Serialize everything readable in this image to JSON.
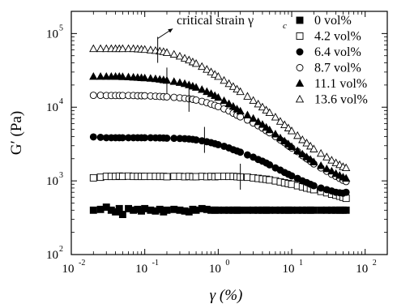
{
  "chart_data": {
    "type": "scatter",
    "title": "",
    "xlabel": "γ (%)",
    "ylabel": "G′ (Pa)",
    "x_scale": "log",
    "y_scale": "log",
    "xlim": [
      0.01,
      200
    ],
    "ylim": [
      100,
      200000
    ],
    "x_ticks": [
      {
        "value": 0.01,
        "base": "10",
        "exp": "-2"
      },
      {
        "value": 0.1,
        "base": "10",
        "exp": "-1"
      },
      {
        "value": 1,
        "base": "10",
        "exp": "0"
      },
      {
        "value": 10,
        "base": "10",
        "exp": "1"
      },
      {
        "value": 100,
        "base": "10",
        "exp": "2"
      }
    ],
    "y_ticks": [
      {
        "value": 100,
        "base": "10",
        "exp": "2"
      },
      {
        "value": 1000,
        "base": "10",
        "exp": "3"
      },
      {
        "value": 10000,
        "base": "10",
        "exp": "4"
      },
      {
        "value": 100000,
        "base": "10",
        "exp": "5"
      }
    ],
    "grid": false,
    "legend_position": "top-right",
    "annotation": {
      "text": "critical strain γ",
      "subscript": "c",
      "x": 0.15,
      "y": 60000,
      "arrow_to": {
        "x": 0.24,
        "y": 100000
      }
    },
    "series": [
      {
        "name": "0 vol%",
        "marker": "square",
        "filled": true,
        "x": [
          0.02,
          0.025,
          0.03,
          0.035,
          0.04,
          0.045,
          0.05,
          0.06,
          0.07,
          0.08,
          0.09,
          0.1,
          0.12,
          0.14,
          0.16,
          0.18,
          0.2,
          0.25,
          0.3,
          0.35,
          0.4,
          0.45,
          0.5,
          0.6,
          0.7,
          0.8,
          0.9,
          1,
          1.2,
          1.4,
          1.6,
          1.8,
          2,
          2.5,
          3,
          3.5,
          4,
          4.5,
          5,
          6,
          7,
          8,
          9,
          10,
          12,
          14,
          16,
          18,
          20,
          25,
          30,
          35,
          40,
          45,
          50,
          55
        ],
        "y": [
          400,
          410,
          440,
          400,
          380,
          420,
          350,
          420,
          400,
          410,
          390,
          420,
          400,
          390,
          410,
          380,
          400,
          410,
          400,
          390,
          380,
          410,
          400,
          420,
          410,
          400,
          400,
          400,
          400,
          400,
          400,
          400,
          400,
          400,
          400,
          400,
          400,
          400,
          400,
          400,
          400,
          400,
          400,
          400,
          400,
          400,
          400,
          400,
          400,
          400,
          400,
          400,
          400,
          400,
          400,
          400
        ]
      },
      {
        "name": "4.2 vol%",
        "marker": "square",
        "filled": false,
        "x": [
          0.02,
          0.025,
          0.03,
          0.035,
          0.04,
          0.045,
          0.05,
          0.06,
          0.07,
          0.08,
          0.09,
          0.1,
          0.12,
          0.14,
          0.16,
          0.18,
          0.2,
          0.25,
          0.3,
          0.35,
          0.4,
          0.45,
          0.5,
          0.6,
          0.7,
          0.8,
          0.9,
          1,
          1.2,
          1.4,
          1.6,
          1.8,
          2,
          2.5,
          3,
          3.5,
          4,
          4.5,
          5,
          6,
          7,
          8,
          9,
          10,
          12,
          14,
          16,
          18,
          20,
          25,
          30,
          35,
          40,
          45,
          50,
          55
        ],
        "y": [
          1100,
          1120,
          1150,
          1150,
          1150,
          1160,
          1150,
          1160,
          1150,
          1150,
          1150,
          1150,
          1150,
          1150,
          1150,
          1150,
          1140,
          1150,
          1150,
          1140,
          1150,
          1140,
          1140,
          1150,
          1140,
          1150,
          1140,
          1150,
          1150,
          1150,
          1150,
          1140,
          1130,
          1120,
          1100,
          1080,
          1060,
          1050,
          1030,
          1000,
          970,
          940,
          920,
          900,
          860,
          830,
          800,
          780,
          760,
          720,
          690,
          660,
          640,
          620,
          600,
          580
        ]
      },
      {
        "name": "6.4 vol%",
        "marker": "circle",
        "filled": true,
        "x": [
          0.02,
          0.025,
          0.03,
          0.035,
          0.04,
          0.045,
          0.05,
          0.06,
          0.07,
          0.08,
          0.09,
          0.1,
          0.12,
          0.14,
          0.16,
          0.18,
          0.2,
          0.25,
          0.3,
          0.35,
          0.4,
          0.45,
          0.5,
          0.6,
          0.7,
          0.8,
          0.9,
          1,
          1.2,
          1.4,
          1.6,
          1.8,
          2,
          2.5,
          3,
          3.5,
          4,
          4.5,
          5,
          6,
          7,
          8,
          9,
          10,
          12,
          14,
          16,
          18,
          20,
          25,
          30,
          35,
          40,
          45,
          50,
          55
        ],
        "y": [
          3950,
          3900,
          3850,
          3850,
          3850,
          3850,
          3850,
          3850,
          3850,
          3850,
          3850,
          3850,
          3850,
          3840,
          3830,
          3820,
          3800,
          3780,
          3760,
          3740,
          3700,
          3660,
          3600,
          3500,
          3400,
          3300,
          3200,
          3100,
          2950,
          2800,
          2650,
          2550,
          2450,
          2250,
          2100,
          1950,
          1850,
          1750,
          1650,
          1500,
          1400,
          1300,
          1230,
          1170,
          1080,
          1000,
          950,
          900,
          860,
          800,
          760,
          730,
          700,
          690,
          680,
          700
        ]
      },
      {
        "name": "8.7 vol%",
        "marker": "circle",
        "filled": false,
        "x": [
          0.02,
          0.025,
          0.03,
          0.035,
          0.04,
          0.045,
          0.05,
          0.06,
          0.07,
          0.08,
          0.09,
          0.1,
          0.12,
          0.14,
          0.16,
          0.18,
          0.2,
          0.25,
          0.3,
          0.35,
          0.4,
          0.45,
          0.5,
          0.6,
          0.7,
          0.8,
          0.9,
          1,
          1.2,
          1.4,
          1.6,
          1.8,
          2,
          2.5,
          3,
          3.5,
          4,
          4.5,
          5,
          6,
          7,
          8,
          9,
          10,
          12,
          14,
          16,
          18,
          20,
          25,
          30,
          35,
          40,
          45,
          50,
          55
        ],
        "y": [
          14500,
          14500,
          14400,
          14400,
          14400,
          14400,
          14400,
          14400,
          14400,
          14300,
          14300,
          14300,
          14200,
          14100,
          14000,
          13900,
          13800,
          13600,
          13400,
          13200,
          13000,
          12800,
          12500,
          12000,
          11500,
          11000,
          10600,
          10200,
          9500,
          8900,
          8300,
          7800,
          7400,
          6700,
          6100,
          5600,
          5200,
          4800,
          4500,
          4000,
          3600,
          3300,
          3000,
          2800,
          2500,
          2200,
          2000,
          1850,
          1700,
          1500,
          1350,
          1230,
          1150,
          1080,
          1020,
          980
        ]
      },
      {
        "name": "11.1 vol%",
        "marker": "triangle",
        "filled": true,
        "x": [
          0.02,
          0.025,
          0.03,
          0.035,
          0.04,
          0.045,
          0.05,
          0.06,
          0.07,
          0.08,
          0.09,
          0.1,
          0.12,
          0.14,
          0.16,
          0.18,
          0.2,
          0.25,
          0.3,
          0.35,
          0.4,
          0.45,
          0.5,
          0.6,
          0.7,
          0.8,
          0.9,
          1,
          1.2,
          1.4,
          1.6,
          1.8,
          2,
          2.5,
          3,
          3.5,
          4,
          4.5,
          5,
          6,
          7,
          8,
          9,
          10,
          12,
          14,
          16,
          18,
          20,
          25,
          30,
          35,
          40,
          45,
          50,
          55
        ],
        "y": [
          26000,
          26000,
          26000,
          26000,
          26000,
          26000,
          25800,
          25600,
          25400,
          25200,
          25000,
          24800,
          24500,
          24200,
          23800,
          23400,
          23000,
          22200,
          21500,
          20800,
          20000,
          19200,
          18500,
          17300,
          16200,
          15200,
          14300,
          13500,
          12200,
          11100,
          10200,
          9400,
          8800,
          7800,
          7000,
          6300,
          5800,
          5300,
          4900,
          4300,
          3800,
          3450,
          3150,
          2900,
          2550,
          2300,
          2100,
          1950,
          1800,
          1600,
          1450,
          1350,
          1250,
          1180,
          1120,
          1080
        ]
      },
      {
        "name": "13.6 vol%",
        "marker": "triangle",
        "filled": false,
        "x": [
          0.02,
          0.025,
          0.03,
          0.035,
          0.04,
          0.045,
          0.05,
          0.06,
          0.07,
          0.08,
          0.09,
          0.1,
          0.12,
          0.14,
          0.16,
          0.18,
          0.2,
          0.25,
          0.3,
          0.35,
          0.4,
          0.45,
          0.5,
          0.6,
          0.7,
          0.8,
          0.9,
          1,
          1.2,
          1.4,
          1.6,
          1.8,
          2,
          2.5,
          3,
          3.5,
          4,
          4.5,
          5,
          6,
          7,
          8,
          9,
          10,
          12,
          14,
          16,
          18,
          20,
          25,
          30,
          35,
          40,
          45,
          50,
          55
        ],
        "y": [
          62000,
          62000,
          62000,
          62000,
          62000,
          62000,
          62000,
          62000,
          62000,
          61500,
          61000,
          60500,
          59500,
          58500,
          57500,
          56500,
          55000,
          52000,
          49000,
          46000,
          43500,
          41000,
          39000,
          35500,
          32500,
          30000,
          27800,
          26000,
          23000,
          20800,
          19000,
          17500,
          16200,
          14000,
          12300,
          11000,
          10000,
          9100,
          8400,
          7300,
          6400,
          5750,
          5200,
          4750,
          4100,
          3600,
          3250,
          2950,
          2700,
          2350,
          2100,
          1900,
          1750,
          1650,
          1550,
          1500
        ]
      }
    ],
    "critical_strain_markers": [
      {
        "x": 0.15,
        "y": 60000
      },
      {
        "x": 0.2,
        "y": 23000
      },
      {
        "x": 0.4,
        "y": 13000
      },
      {
        "x": 0.65,
        "y": 3600
      },
      {
        "x": 2.0,
        "y": 1140
      }
    ]
  }
}
